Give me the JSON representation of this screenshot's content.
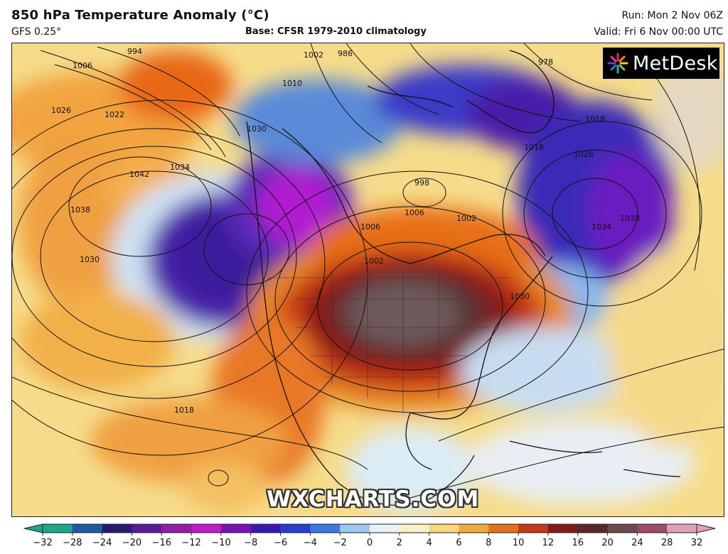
{
  "header": {
    "title": "850 hPa Temperature Anomaly (°C)",
    "model": "GFS 0.25°",
    "base": "Base: CFSR 1979-2010 climatology",
    "run": "Run: Mon 2 Nov 06Z",
    "valid": "Valid: Fri 6 Nov 00:00 UTC"
  },
  "logo": {
    "text": "MetDesk",
    "icon": "metdesk-burst-icon"
  },
  "watermark": "WXCHARTS.COM",
  "isobar_labels": [
    "994",
    "1006",
    "986",
    "1002",
    "1010",
    "978",
    "1026",
    "1022",
    "1030",
    "1042",
    "1034",
    "1038",
    "1030",
    "1018",
    "1026",
    "1018",
    "998",
    "1006",
    "1002",
    "1006",
    "1002",
    "1018",
    "1038",
    "1030",
    "1034"
  ],
  "colorbar": {
    "ticks": [
      "−32",
      "−28",
      "−24",
      "−20",
      "−16",
      "−12",
      "−10",
      "−8",
      "−6",
      "−4",
      "−2",
      "0",
      "2",
      "4",
      "6",
      "8",
      "10",
      "12",
      "16",
      "20",
      "24",
      "28",
      "32"
    ],
    "colors": [
      "#1aa88a",
      "#1b5aa8",
      "#2a1a6e",
      "#5a1a9e",
      "#9a1aa8",
      "#c21ad0",
      "#7a10b8",
      "#3a18b8",
      "#2a3ad8",
      "#3a78e8",
      "#9ec8f0",
      "#e8f0f8",
      "#f8f0c8",
      "#f8d878",
      "#f4a838",
      "#e87018",
      "#c83818",
      "#8a1818",
      "#5a2828",
      "#6a4a4a",
      "#a04a6a",
      "#e0a0b8"
    ]
  }
}
